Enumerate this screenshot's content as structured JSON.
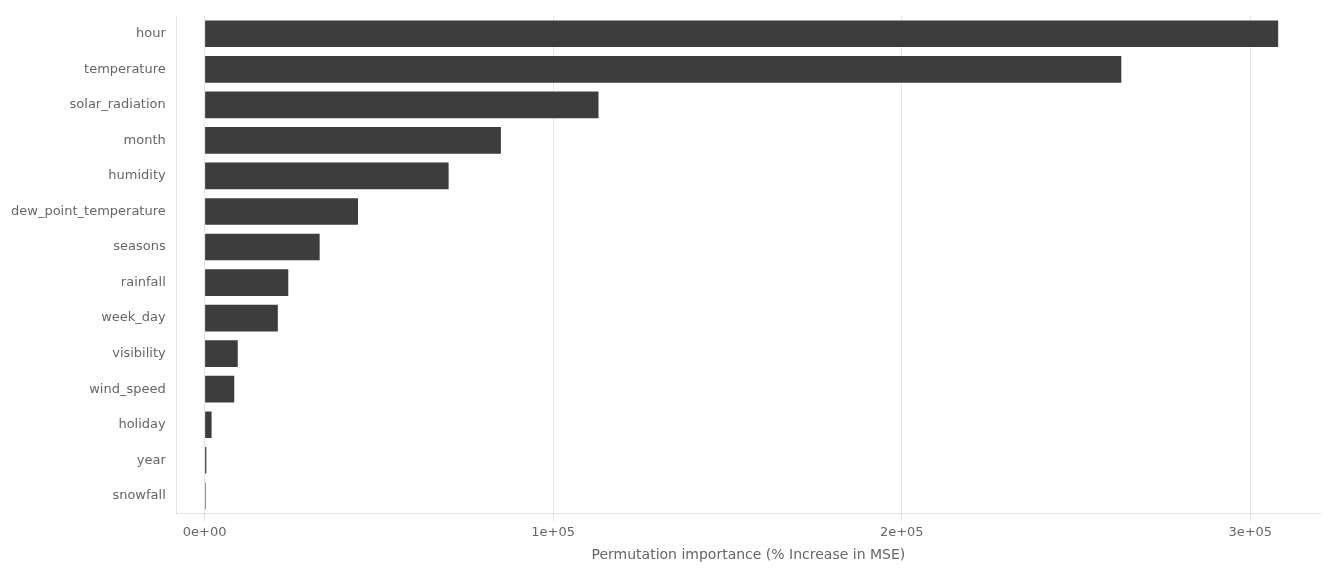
{
  "chart_data": {
    "type": "bar",
    "orientation": "horizontal",
    "categories": [
      "snowfall",
      "year",
      "holiday",
      "wind_speed",
      "visibility",
      "week_day",
      "rainfall",
      "seasons",
      "dew_point_temperature",
      "humidity",
      "month",
      "solar_radiation",
      "temperature",
      "hour"
    ],
    "values": [
      300,
      500,
      2000,
      8500,
      9500,
      21000,
      24000,
      33000,
      44000,
      70000,
      85000,
      113000,
      263000,
      308000
    ],
    "color": "#3d3d3d",
    "xlabel": "Permutation importance (% Increase in MSE)",
    "xlim": [
      -8000,
      320000
    ],
    "xticks": [
      {
        "value": 0,
        "label": "0e+00"
      },
      {
        "value": 100000,
        "label": "1e+05"
      },
      {
        "value": 200000,
        "label": "2e+05"
      },
      {
        "value": 300000,
        "label": "3e+05"
      }
    ],
    "grid": true
  }
}
